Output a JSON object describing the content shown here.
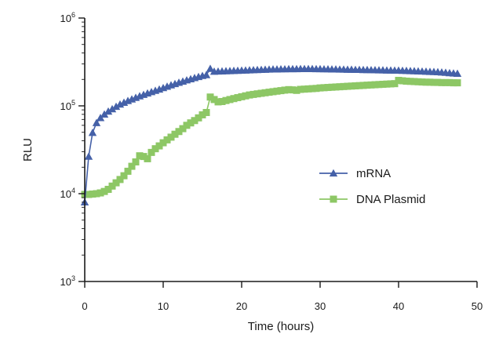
{
  "chart_data": {
    "type": "line",
    "title": "",
    "xlabel": "Time (hours)",
    "ylabel": "RLU",
    "yscale": "log",
    "xlim": [
      0,
      50
    ],
    "ylim": [
      1000,
      1000000
    ],
    "x_ticks": [
      0,
      10,
      20,
      30,
      40,
      50
    ],
    "y_ticks": [
      {
        "value": 1000,
        "base": "10",
        "exp": "3"
      },
      {
        "value": 10000,
        "base": "10",
        "exp": "4"
      },
      {
        "value": 100000,
        "base": "10",
        "exp": "5"
      },
      {
        "value": 1000000,
        "base": "10",
        "exp": "6"
      }
    ],
    "legend_position": "right-middle",
    "series": [
      {
        "name": "mRNA",
        "color": "#4561a8",
        "marker": "triangle",
        "x": [
          0,
          0.5,
          1,
          1.5,
          2,
          2.5,
          3,
          3.5,
          4,
          4.5,
          5,
          5.5,
          6,
          6.5,
          7,
          7.5,
          8,
          8.5,
          9,
          9.5,
          10,
          10.5,
          11,
          11.5,
          12,
          12.5,
          13,
          13.5,
          14,
          14.5,
          15,
          15.5,
          16,
          16.5,
          17,
          17.5,
          18,
          18.5,
          19,
          19.5,
          20,
          20.5,
          21,
          21.5,
          22,
          22.5,
          23,
          23.5,
          24,
          24.5,
          25,
          25.5,
          26,
          26.5,
          27,
          27.5,
          28,
          28.5,
          29,
          29.5,
          30,
          30.5,
          31,
          31.5,
          32,
          32.5,
          33,
          33.5,
          34,
          34.5,
          35,
          35.5,
          36,
          36.5,
          37,
          37.5,
          38,
          38.5,
          39,
          39.5,
          40,
          40.5,
          41,
          41.5,
          42,
          42.5,
          43,
          43.5,
          44,
          44.5,
          45,
          45.5,
          46,
          46.5,
          47,
          47.5
        ],
        "values": [
          8000,
          26500,
          49500,
          64000,
          73000,
          80000,
          86500,
          92000,
          98000,
          104000,
          109000,
          114000,
          119000,
          124000,
          129000,
          134000,
          139000,
          144000,
          149000,
          154000,
          160000,
          166000,
          172000,
          178000,
          184000,
          190000,
          196000,
          202000,
          208000,
          214000,
          220000,
          225000,
          265000,
          246000,
          247000,
          248000,
          249000,
          250000,
          251000,
          252000,
          253000,
          254000,
          255000,
          256000,
          257000,
          258000,
          259000,
          260000,
          261000,
          261000,
          262000,
          262000,
          263000,
          263000,
          263000,
          264000,
          264000,
          264000,
          264000,
          263000,
          263000,
          262000,
          262000,
          261000,
          261000,
          260000,
          260000,
          259000,
          259000,
          258000,
          258000,
          257000,
          257000,
          256000,
          256000,
          255000,
          255000,
          254000,
          254000,
          253000,
          253000,
          252000,
          251000,
          250000,
          249000,
          248000,
          247000,
          246000,
          245000,
          244000,
          243000,
          241000,
          239000,
          237000,
          235000,
          233000
        ]
      },
      {
        "name": "DNA Plasmid",
        "color": "#8dc765",
        "marker": "square",
        "x": [
          0,
          0.5,
          1,
          1.5,
          2,
          2.5,
          3,
          3.5,
          4,
          4.5,
          5,
          5.5,
          6,
          6.5,
          7,
          7.5,
          8,
          8.5,
          9,
          9.5,
          10,
          10.5,
          11,
          11.5,
          12,
          12.5,
          13,
          13.5,
          14,
          14.5,
          15,
          15.5,
          16,
          16.5,
          17,
          17.5,
          18,
          18.5,
          19,
          19.5,
          20,
          20.5,
          21,
          21.5,
          22,
          22.5,
          23,
          23.5,
          24,
          24.5,
          25,
          25.5,
          26,
          26.5,
          27,
          27.5,
          28,
          28.5,
          29,
          29.5,
          30,
          30.5,
          31,
          31.5,
          32,
          32.5,
          33,
          33.5,
          34,
          34.5,
          35,
          35.5,
          36,
          36.5,
          37,
          37.5,
          38,
          38.5,
          39,
          39.5,
          40,
          40.5,
          41,
          41.5,
          42,
          42.5,
          43,
          43.5,
          44,
          44.5,
          45,
          45.5,
          46,
          46.5,
          47,
          47.5
        ],
        "values": [
          9800,
          9800,
          9900,
          10000,
          10200,
          10600,
          11200,
          12200,
          13300,
          14500,
          16000,
          18000,
          20500,
          23000,
          27000,
          26500,
          25000,
          29500,
          32500,
          35000,
          38000,
          41000,
          44000,
          47500,
          51000,
          55000,
          60000,
          64000,
          68000,
          73000,
          79000,
          84000,
          126000,
          118000,
          111000,
          112000,
          115000,
          118000,
          121000,
          124000,
          127000,
          130000,
          133000,
          135000,
          137000,
          139000,
          141000,
          143000,
          145000,
          147000,
          149000,
          151000,
          153000,
          152000,
          150000,
          154000,
          155000,
          156000,
          157000,
          158000,
          160000,
          161000,
          162000,
          163000,
          164000,
          165000,
          166000,
          167000,
          168000,
          169000,
          170000,
          171000,
          172000,
          173000,
          174000,
          175000,
          176000,
          177000,
          178000,
          179000,
          195000,
          193000,
          191000,
          190000,
          189000,
          188000,
          187000,
          186000,
          186000,
          185000,
          185000,
          184000,
          184000,
          184000,
          183000,
          183000
        ]
      }
    ]
  }
}
